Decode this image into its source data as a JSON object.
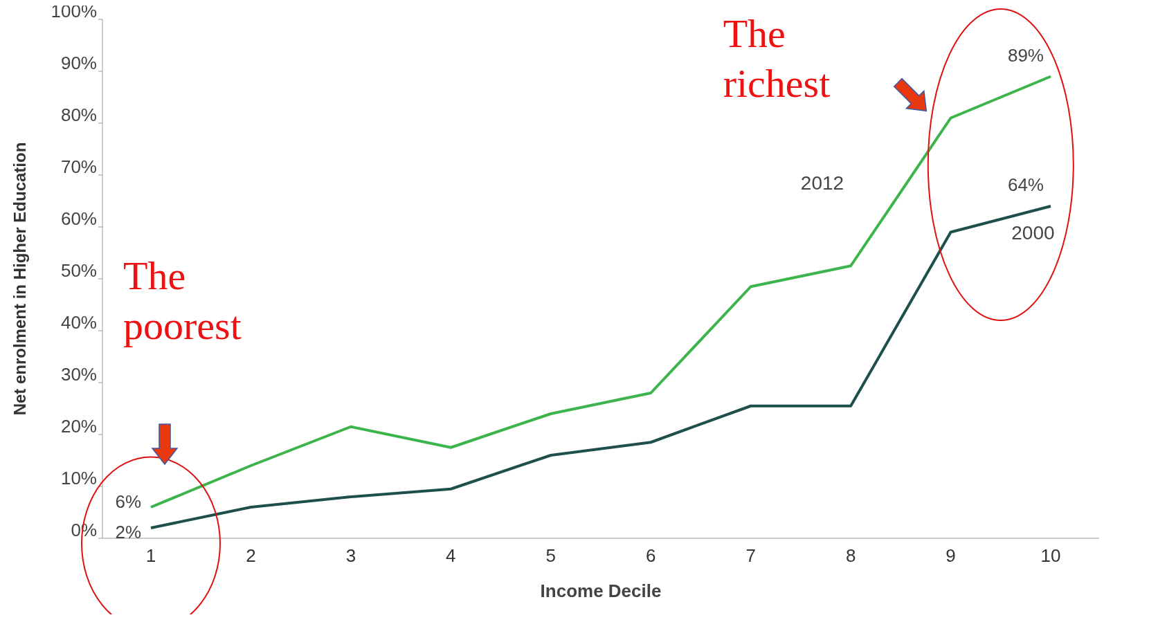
{
  "chart_data": {
    "type": "line",
    "xlabel": "Income Decile",
    "ylabel": "Net enrolment in Higher Education",
    "categories": [
      "1",
      "2",
      "3",
      "4",
      "5",
      "6",
      "7",
      "8",
      "9",
      "10"
    ],
    "series": [
      {
        "name": "2012",
        "color": "#3cb44b",
        "values": [
          6,
          14,
          21.5,
          17.5,
          24,
          28,
          48.5,
          52.5,
          81,
          89
        ],
        "value_labels": [
          "6%",
          null,
          null,
          null,
          null,
          null,
          null,
          null,
          null,
          "89%"
        ]
      },
      {
        "name": "2000",
        "color": "#1f4f4a",
        "values": [
          2,
          6,
          8,
          9.5,
          16,
          18.5,
          25.5,
          25.5,
          59,
          64
        ],
        "value_labels": [
          "2%",
          null,
          null,
          null,
          null,
          null,
          null,
          null,
          null,
          "64%"
        ]
      }
    ],
    "ylim": [
      0,
      100
    ],
    "yticks": [
      {
        "value": 0,
        "label": "0%"
      },
      {
        "value": 10,
        "label": "10%"
      },
      {
        "value": 20,
        "label": "20%"
      },
      {
        "value": 30,
        "label": "30%"
      },
      {
        "value": 40,
        "label": "40%"
      },
      {
        "value": 50,
        "label": "50%"
      },
      {
        "value": 60,
        "label": "60%"
      },
      {
        "value": 70,
        "label": "70%"
      },
      {
        "value": 80,
        "label": "80%"
      },
      {
        "value": 90,
        "label": "90%"
      },
      {
        "value": 100,
        "label": "100%"
      }
    ],
    "annotations": [
      "The richest",
      "The poorest"
    ],
    "grid": false,
    "legend": false,
    "marker": "none",
    "line_style": "solid"
  }
}
